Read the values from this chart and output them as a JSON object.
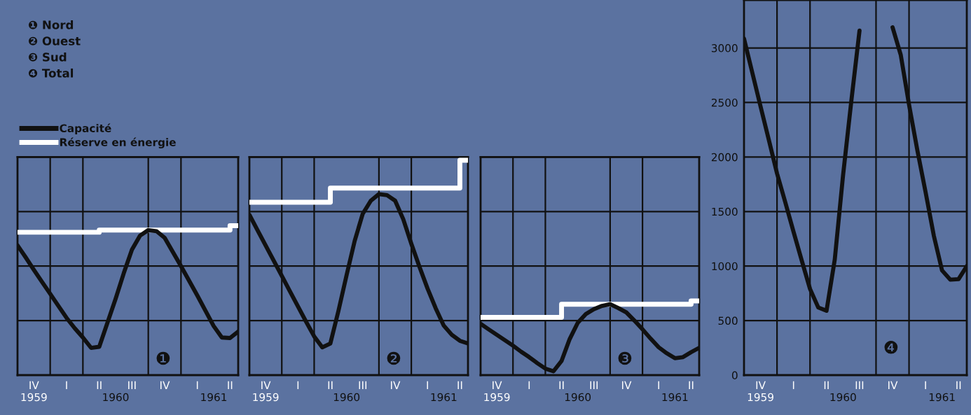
{
  "chart_data": [
    {
      "type": "line",
      "title": "❹",
      "ylim": [
        0,
        3440
      ],
      "yticks": [
        0,
        500,
        1000,
        1500,
        2000,
        2500,
        3000
      ],
      "grid": true,
      "categories": [
        null,
        null,
        "IV\n1959",
        null,
        null,
        null,
        "I",
        null,
        null,
        null,
        "II",
        null,
        "\n1960",
        null,
        "III",
        null,
        null,
        null,
        "IV",
        null,
        null,
        null,
        "I",
        null,
        "\n1961",
        null,
        "II",
        null
      ],
      "series": [
        {
          "color": "#111111",
          "values": [
            3085,
            2775,
            2465,
            2160,
            1850,
            1585,
            1315,
            1050,
            790,
            620,
            590,
            1060,
            1830,
            2510,
            3160,
            null,
            null,
            null,
            3190,
            2935,
            2480,
            2065,
            1680,
            1280,
            960,
            875,
            880,
            1000
          ]
        }
      ]
    },
    {
      "type": "line",
      "title": "❶",
      "ylim": [
        0,
        2000
      ],
      "yticks": [
        0,
        500,
        1000,
        1500,
        2000
      ],
      "tick_labels": "x",
      "grid": true,
      "legend": "top left",
      "categories": [
        null,
        null,
        "IV\n1959",
        null,
        null,
        null,
        "I",
        null,
        null,
        null,
        "II",
        null,
        "\n1960",
        null,
        "III",
        null,
        null,
        null,
        "IV",
        null,
        null,
        null,
        "I",
        null,
        "\n1961",
        null,
        "II",
        null
      ],
      "annotations": [
        "❶ Nord",
        "❷ Ouest",
        "❸ Sud",
        "❹ Total"
      ],
      "series": [
        {
          "name": "Capacité",
          "color": "#111111",
          "values": [
            1190,
            1080,
            965,
            855,
            745,
            635,
            525,
            430,
            345,
            250,
            260,
            480,
            700,
            935,
            1150,
            1280,
            1330,
            1320,
            1260,
            1130,
            1000,
            865,
            730,
            590,
            450,
            345,
            340,
            400
          ]
        },
        {
          "name": "Réserve en énergie",
          "type": "step",
          "color": "#ffffff",
          "values": [
            1310,
            1310,
            1310,
            1310,
            1310,
            1310,
            1310,
            1310,
            1310,
            1310,
            1330,
            1330,
            1330,
            1330,
            1330,
            1330,
            1330,
            1330,
            1330,
            1330,
            1330,
            1330,
            1330,
            1330,
            1330,
            1330,
            1370,
            1370
          ]
        }
      ]
    },
    {
      "type": "line",
      "title": "❷",
      "ylim": [
        0,
        2000
      ],
      "yticks": [
        0,
        500,
        1000,
        1500,
        2000
      ],
      "tick_labels": "x",
      "grid": true,
      "categories": [
        null,
        null,
        "IV\n1959",
        null,
        null,
        null,
        "I",
        null,
        null,
        null,
        "II",
        null,
        "\n1960",
        null,
        "III",
        null,
        null,
        null,
        "IV",
        null,
        null,
        null,
        "I",
        null,
        "\n1961",
        null,
        "II",
        null
      ],
      "series": [
        {
          "color": "#111111",
          "values": [
            1470,
            1330,
            1190,
            1050,
            910,
            770,
            630,
            490,
            355,
            255,
            290,
            590,
            915,
            1230,
            1480,
            1600,
            1660,
            1650,
            1600,
            1430,
            1205,
            995,
            795,
            615,
            455,
            370,
            315,
            290
          ]
        },
        {
          "type": "step",
          "color": "#ffffff",
          "values": [
            1585,
            1585,
            1585,
            1585,
            1585,
            1585,
            1585,
            1585,
            1585,
            1585,
            1715,
            1715,
            1715,
            1715,
            1715,
            1715,
            1715,
            1715,
            1715,
            1715,
            1715,
            1715,
            1715,
            1715,
            1715,
            1715,
            1970,
            1970
          ]
        }
      ]
    },
    {
      "type": "line",
      "title": "❸",
      "ylim": [
        0,
        2000
      ],
      "yticks": [
        0,
        500,
        1000,
        1500,
        2000
      ],
      "tick_labels": "x",
      "grid": true,
      "categories": [
        null,
        null,
        "IV\n1959",
        null,
        null,
        null,
        "I",
        null,
        null,
        null,
        "II",
        null,
        "\n1960",
        null,
        "III",
        null,
        null,
        null,
        "IV",
        null,
        null,
        null,
        "I",
        null,
        "\n1961",
        null,
        "II",
        null
      ],
      "series": [
        {
          "color": "#111111",
          "values": [
            470,
            420,
            370,
            320,
            270,
            215,
            165,
            110,
            60,
            35,
            130,
            330,
            480,
            560,
            605,
            635,
            650,
            615,
            575,
            500,
            420,
            335,
            255,
            200,
            155,
            165,
            210,
            250
          ]
        },
        {
          "type": "step",
          "color": "#ffffff",
          "values": [
            530,
            530,
            530,
            530,
            530,
            530,
            530,
            530,
            530,
            530,
            650,
            650,
            650,
            650,
            650,
            650,
            650,
            650,
            650,
            650,
            650,
            650,
            650,
            650,
            650,
            650,
            680,
            680
          ]
        }
      ]
    }
  ]
}
